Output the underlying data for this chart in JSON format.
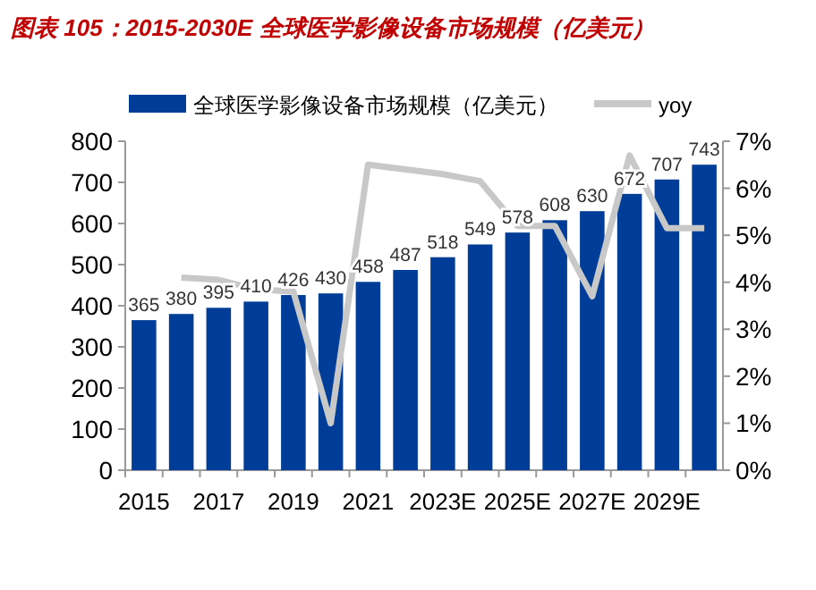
{
  "chart_data": {
    "type": "bar",
    "title": "图表 105：2015-2030E 全球医学影像设备市场规模（亿美元）",
    "categories": [
      "2015",
      null,
      "2017",
      null,
      "2019",
      null,
      "2021",
      null,
      "2023E",
      null,
      "2025E",
      null,
      "2027E",
      null,
      "2029E",
      null
    ],
    "series": [
      {
        "name": "全球医学影像设备市场规模（亿美元）",
        "color": "#003d99",
        "values": [
          365,
          380,
          395,
          410,
          426,
          430,
          458,
          487,
          518,
          549,
          578,
          608,
          630,
          672,
          707,
          743
        ],
        "value_labels": [
          "365",
          "380",
          "395",
          "410",
          "426",
          "430",
          "458",
          "487",
          "518",
          "549",
          "578",
          "608",
          "630",
          "672",
          "707",
          "743"
        ]
      },
      {
        "name": "yoy",
        "type": "line",
        "axis": "y2",
        "color": "#c8c8c8",
        "values": [
          null,
          4.1,
          4.05,
          3.85,
          3.8,
          1.0,
          6.5,
          6.4,
          6.3,
          6.15,
          5.2,
          5.2,
          3.7,
          6.7,
          5.15,
          5.15
        ]
      }
    ],
    "legend": "top",
    "grid": false,
    "ylim": [
      0,
      800
    ],
    "yticks": [
      0,
      100,
      200,
      300,
      400,
      500,
      600,
      700,
      800
    ],
    "y2lim": [
      0,
      7
    ],
    "y2ticks": [
      {
        "value": 0,
        "label": "0%"
      },
      {
        "value": 1,
        "label": "1%"
      },
      {
        "value": 2,
        "label": "2%"
      },
      {
        "value": 3,
        "label": "3%"
      },
      {
        "value": 4,
        "label": "4%"
      },
      {
        "value": 5,
        "label": "5%"
      },
      {
        "value": 6,
        "label": "6%"
      },
      {
        "value": 7,
        "label": "7%"
      }
    ]
  }
}
